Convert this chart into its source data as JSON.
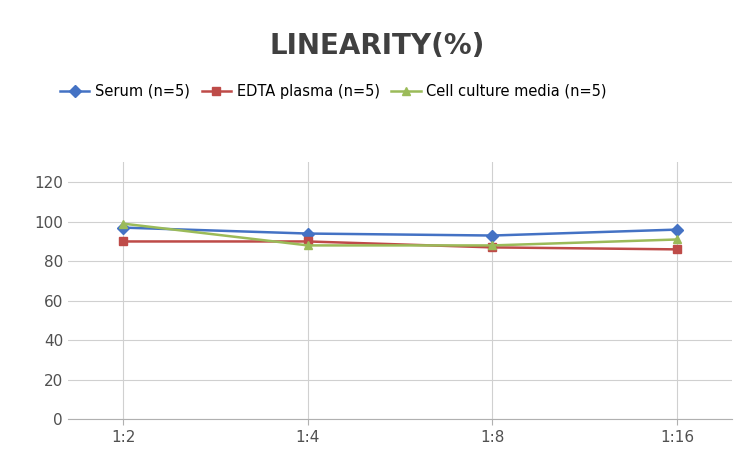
{
  "title": "LINEARITY(%)",
  "title_fontsize": 20,
  "title_fontweight": "bold",
  "title_color": "#404040",
  "x_labels": [
    "1:2",
    "1:4",
    "1:8",
    "1:16"
  ],
  "x_positions": [
    0,
    1,
    2,
    3
  ],
  "series": [
    {
      "label": "Serum (n=5)",
      "values": [
        97,
        94,
        93,
        96
      ],
      "color": "#4472C4",
      "marker": "D",
      "markersize": 6,
      "linewidth": 1.8
    },
    {
      "label": "EDTA plasma (n=5)",
      "values": [
        90,
        90,
        87,
        86
      ],
      "color": "#BE4B48",
      "marker": "s",
      "markersize": 6,
      "linewidth": 1.8
    },
    {
      "label": "Cell culture media (n=5)",
      "values": [
        99,
        88,
        88,
        91
      ],
      "color": "#9BBB59",
      "marker": "^",
      "markersize": 6,
      "linewidth": 1.8
    }
  ],
  "ylim": [
    0,
    130
  ],
  "yticks": [
    0,
    20,
    40,
    60,
    80,
    100,
    120
  ],
  "grid_color": "#D0D0D0",
  "background_color": "#FFFFFF",
  "legend_fontsize": 10.5,
  "tick_fontsize": 11
}
